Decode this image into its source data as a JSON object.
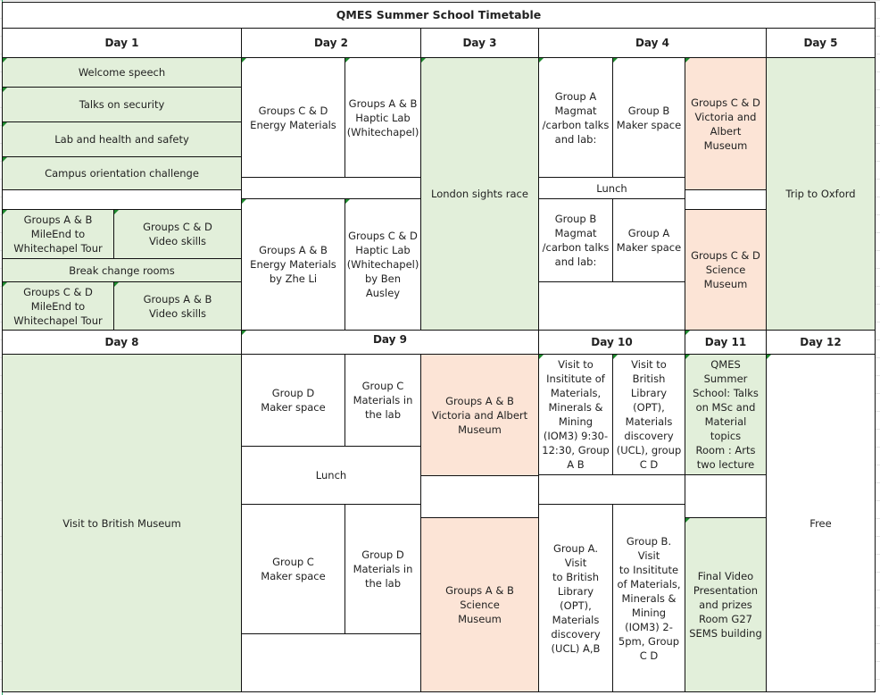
{
  "title": "QMES Summer School Timetable",
  "colors": {
    "green": "#e2efda",
    "peach": "#fce4d6",
    "border": "#111111"
  },
  "headers_week1": [
    "Day 1",
    "Day 2",
    "Day 3",
    "Day 4",
    "Day 5"
  ],
  "headers_week2": [
    "Day 8",
    "Day 9",
    "Day 10",
    "Day 11",
    "Day 12"
  ],
  "day1": {
    "welcome": "Welcome speech",
    "security": "Talks on security",
    "lab_safety": "Lab and health and safety",
    "campus": "Campus orientation challenge",
    "ab_tour": "Groups A & B\nMileEnd to\nWhitechapel Tour",
    "cd_video": "Groups C & D\nVideo skills",
    "break": "Break change rooms",
    "cd_tour": "Groups C & D\nMileEnd to\nWhitechapel Tour",
    "ab_video": "Groups A & B\nVideo skills"
  },
  "day2": {
    "cd_energy": "Groups C & D\nEnergy Materials",
    "ab_haptic": "Groups A & B\nHaptic Lab\n(Whitechapel)",
    "ab_energy": "Groups A & B\nEnergy Materials\nby Zhe Li",
    "cd_haptic": "Groups C & D\nHaptic Lab\n(Whitechapel)\nby Ben Ausley"
  },
  "day3": {
    "london": "London  sights race"
  },
  "day4": {
    "a_magmat": "Group A\nMagmat\n/carbon talks\nand lab:",
    "b_maker": "Group B\nMaker space",
    "cd_va": "Groups C & D\nVictoria and\nAlbert Museum",
    "lunch": "Lunch",
    "b_magmat": "Group B\nMagmat\n/carbon talks\nand lab:",
    "a_maker": "Group A\nMaker space",
    "cd_science": "Groups C & D\nScience\nMuseum"
  },
  "day5": {
    "oxford": "Trip to Oxford"
  },
  "day8": {
    "museum": "Visit to British Museum"
  },
  "day9": {
    "d_maker": "Group D\nMaker space",
    "c_materials": "Group C\nMaterials in\nthe lab",
    "lunch": "Lunch",
    "c_maker": "Group C\nMaker space",
    "d_materials": "Group D\nMaterials in\nthe lab",
    "ab_va": "Groups A & B\nVictoria and  Albert\nMuseum",
    "ab_science": "Groups A & B\nScience\nMuseum"
  },
  "day10": {
    "iom3_am": "Visit to\nInsititute of\nMaterials,\nMinerals &\nMining\n(IOM3) 9:30-\n12:30, Group\nA B",
    "bl_am": "Visit to\nBritish Library\n(OPT),\nMaterials\ndiscovery\n(UCL), group\nC D",
    "bl_pm": "Group A. Visit\nto British\nLibrary (OPT),\nMaterials\ndiscovery\n(UCL) A,B",
    "iom3_pm": "Group B. Visit\nto Insititute\nof Materials,\nMinerals &\nMining\n(IOM3) 2-\n5pm, Group\nC D"
  },
  "day11": {
    "talks": "QMES\nSummer\nSchool: Talks\non MSc and\nMaterial\ntopics\nRoom : Arts\ntwo lecture",
    "final": "Final Video\nPresentation\nand prizes\nRoom G27\nSEMS building"
  },
  "day12": {
    "free": "Free"
  }
}
